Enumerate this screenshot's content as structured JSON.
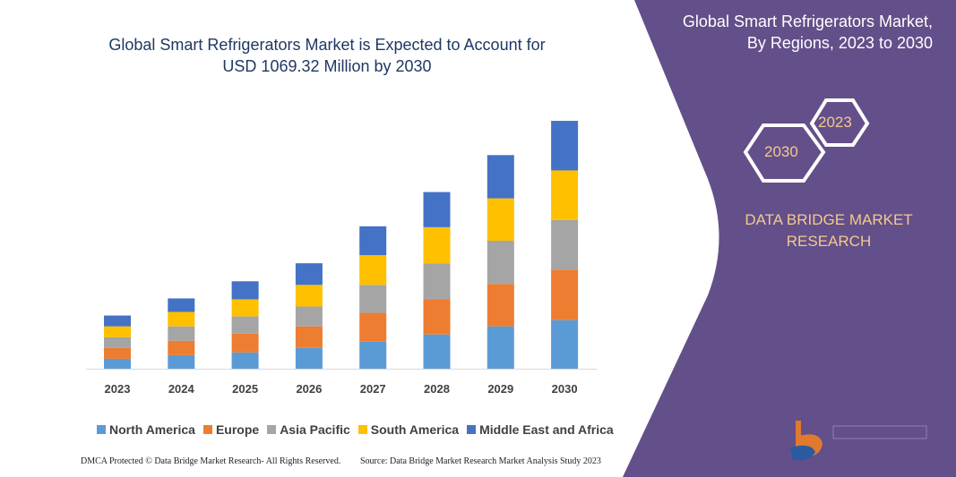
{
  "title_lines": [
    "Global Smart Refrigerators Market is Expected to Account for",
    "USD 1069.32 Million by 2030"
  ],
  "side_panel": {
    "title_lines": [
      "Global Smart Refrigerators Market,",
      "By Regions, 2023 to 2030"
    ],
    "hex_labels": [
      "2023",
      "2030"
    ],
    "brand_lines": [
      "DATA BRIDGE MARKET",
      "RESEARCH"
    ],
    "logo_text": "DATA BRIDGE MARKET RESEARCH",
    "panel_color": "#634f8a"
  },
  "footer": {
    "left": "DMCA Protected © Data Bridge Market Research- All Rights Reserved.",
    "right": "Source: Data Bridge Market Research Market Analysis Study 2023"
  },
  "chart_data": {
    "type": "bar",
    "stacked": true,
    "title": "Global Smart Refrigerators Market is Expected to Account for USD 1069.32 Million by 2030",
    "categories": [
      "2023",
      "2024",
      "2025",
      "2026",
      "2027",
      "2028",
      "2029",
      "2030"
    ],
    "ylim": [
      0,
      280
    ],
    "grid": false,
    "legend": "bottom",
    "series": [
      {
        "name": "North America",
        "color": "#5b9bd5",
        "values": [
          11,
          15,
          18,
          23,
          30,
          38,
          47,
          54
        ]
      },
      {
        "name": "Europe",
        "color": "#ed7d31",
        "values": [
          12,
          16,
          21,
          24,
          32,
          39,
          47,
          56
        ]
      },
      {
        "name": "Asia Pacific",
        "color": "#a5a5a5",
        "values": [
          12,
          16,
          19,
          22,
          31,
          40,
          48,
          55
        ]
      },
      {
        "name": "South America",
        "color": "#ffc000",
        "values": [
          12,
          16,
          19,
          24,
          33,
          40,
          47,
          55
        ]
      },
      {
        "name": "Middle East and Africa",
        "color": "#4472c4",
        "values": [
          12,
          15,
          20,
          24,
          32,
          39,
          48,
          55
        ]
      }
    ]
  }
}
